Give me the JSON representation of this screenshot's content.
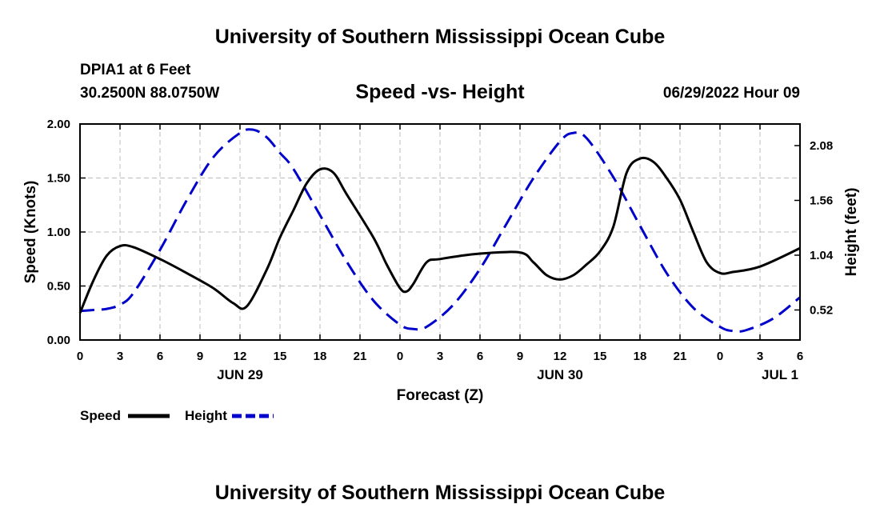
{
  "header": {
    "title": "University of Southern Mississippi Ocean Cube",
    "station": "DPIA1 at 6 Feet",
    "coords": "30.2500N  88.0750W",
    "subtitle": "Speed -vs- Height",
    "datetime": "06/29/2022 Hour 09"
  },
  "footer": {
    "title": "University of Southern Mississippi Ocean Cube"
  },
  "chart_data": {
    "type": "line",
    "title": "Speed -vs- Height",
    "xlabel": "Forecast (Z)",
    "ylabel": "Speed (Knots)",
    "y2label": "Height (feet)",
    "xlim": [
      0,
      54
    ],
    "ylim": [
      0,
      2.0
    ],
    "y2lim": [
      0.235,
      2.285
    ],
    "x_ticks": [
      0,
      3,
      6,
      9,
      12,
      15,
      18,
      21,
      24,
      27,
      30,
      33,
      36,
      39,
      42,
      45,
      48,
      51,
      54
    ],
    "x_tick_labels": [
      "0",
      "3",
      "6",
      "9",
      "12",
      "15",
      "18",
      "21",
      "0",
      "3",
      "6",
      "9",
      "12",
      "15",
      "18",
      "21",
      "0",
      "3",
      "6"
    ],
    "date_labels": [
      {
        "x": 12,
        "text": "JUN 29"
      },
      {
        "x": 36,
        "text": "JUN 30"
      },
      {
        "x": 52.5,
        "text": "JUL 1"
      }
    ],
    "y_ticks": [
      0,
      0.5,
      1.0,
      1.5,
      2.0
    ],
    "y_tick_labels": [
      "0.00",
      "0.50",
      "1.00",
      "1.50",
      "2.00"
    ],
    "y2_ticks": [
      0.52,
      1.04,
      1.56,
      2.08
    ],
    "y2_tick_labels": [
      "0.52",
      "1.04",
      "1.56",
      "2.08"
    ],
    "grid": true,
    "legend": [
      {
        "name": "Speed",
        "color": "#000000",
        "dash": "solid"
      },
      {
        "name": "Height",
        "color": "#0000cc",
        "dash": "dashed"
      }
    ],
    "series": [
      {
        "name": "Speed",
        "axis": "left",
        "color": "#000000",
        "x": [
          0,
          1,
          2,
          3,
          4,
          6,
          8,
          10,
          11.5,
          12.5,
          14,
          15,
          16,
          17,
          18,
          19,
          20,
          22,
          23,
          24,
          24.5,
          25,
          26,
          27,
          30,
          33,
          34,
          35,
          36,
          37,
          38,
          39,
          40,
          41,
          42,
          43,
          44,
          45,
          46,
          47,
          48,
          49,
          51,
          54
        ],
        "y": [
          0.25,
          0.55,
          0.78,
          0.87,
          0.86,
          0.75,
          0.62,
          0.48,
          0.34,
          0.31,
          0.65,
          0.95,
          1.2,
          1.45,
          1.58,
          1.55,
          1.35,
          0.95,
          0.7,
          0.48,
          0.45,
          0.52,
          0.72,
          0.75,
          0.8,
          0.81,
          0.72,
          0.6,
          0.56,
          0.6,
          0.7,
          0.82,
          1.05,
          1.55,
          1.68,
          1.65,
          1.5,
          1.3,
          1.0,
          0.72,
          0.62,
          0.63,
          0.68,
          0.85
        ]
      },
      {
        "name": "Height",
        "axis": "right",
        "color": "#0000cc",
        "x": [
          0,
          1,
          2,
          3,
          4,
          6,
          8,
          10,
          12,
          13,
          14,
          15,
          16,
          18,
          20,
          22,
          24,
          25,
          26,
          28,
          30,
          32,
          34,
          36,
          37,
          38,
          40,
          42,
          44,
          46,
          48,
          49,
          50,
          52,
          54
        ],
        "y": [
          0.51,
          0.52,
          0.53,
          0.57,
          0.68,
          1.09,
          1.56,
          1.97,
          2.2,
          2.23,
          2.16,
          2.01,
          1.86,
          1.42,
          0.98,
          0.61,
          0.38,
          0.34,
          0.36,
          0.57,
          0.91,
          1.34,
          1.77,
          2.12,
          2.2,
          2.15,
          1.78,
          1.32,
          0.87,
          0.54,
          0.36,
          0.32,
          0.33,
          0.44,
          0.64
        ]
      }
    ]
  }
}
